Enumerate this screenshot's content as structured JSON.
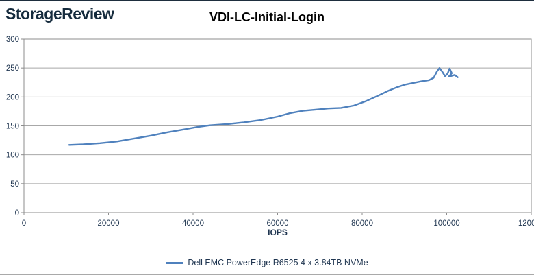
{
  "header": {
    "logo": "StorageReview",
    "title": "VDI-LC-Initial-Login"
  },
  "chart_data": {
    "type": "line",
    "title": "VDI-LC-Initial-Login",
    "xlabel": "IOPS",
    "ylabel": "",
    "xlim": [
      0,
      120000
    ],
    "ylim": [
      0,
      300
    ],
    "x_ticks": [
      0,
      20000,
      40000,
      60000,
      80000,
      100000,
      120000
    ],
    "x_tick_labels": [
      "0",
      "20000",
      "40000",
      "60000",
      "80000",
      "100000",
      "120000"
    ],
    "y_ticks": [
      0,
      50,
      100,
      150,
      200,
      250,
      300
    ],
    "y_tick_labels": [
      "0",
      "50",
      "100",
      "150",
      "200",
      "250",
      "300"
    ],
    "grid": "horizontal",
    "legend_position": "bottom",
    "series": [
      {
        "name": "Dell EMC PowerEdge R6525 4 x 3.84TB NVMe",
        "color": "#4F81BD",
        "points": [
          [
            10700,
            117
          ],
          [
            14000,
            118
          ],
          [
            18000,
            120
          ],
          [
            22000,
            123
          ],
          [
            26000,
            128
          ],
          [
            30000,
            133
          ],
          [
            34000,
            139
          ],
          [
            38000,
            144
          ],
          [
            41000,
            148
          ],
          [
            44000,
            151
          ],
          [
            48000,
            153
          ],
          [
            52000,
            156
          ],
          [
            56000,
            160
          ],
          [
            60000,
            166
          ],
          [
            63000,
            172
          ],
          [
            66000,
            176
          ],
          [
            69000,
            178
          ],
          [
            72000,
            180
          ],
          [
            75000,
            181
          ],
          [
            78000,
            185
          ],
          [
            81000,
            193
          ],
          [
            84000,
            203
          ],
          [
            86000,
            210
          ],
          [
            88000,
            216
          ],
          [
            90000,
            221
          ],
          [
            92000,
            224
          ],
          [
            94000,
            227
          ],
          [
            95800,
            229
          ],
          [
            96900,
            233
          ],
          [
            97700,
            244
          ],
          [
            98300,
            250
          ],
          [
            99000,
            243
          ],
          [
            99600,
            236
          ],
          [
            100200,
            240
          ],
          [
            100700,
            249
          ],
          [
            101200,
            241
          ],
          [
            100500,
            235
          ],
          [
            101900,
            238
          ],
          [
            102600,
            234
          ]
        ]
      }
    ]
  },
  "colors": {
    "line": "#4F81BD",
    "grid": "#a8a8a8",
    "axis": "#8c8c8c",
    "tick_text": "#1f3550",
    "title_text": "#000000",
    "logo_text": "#152b3d"
  }
}
